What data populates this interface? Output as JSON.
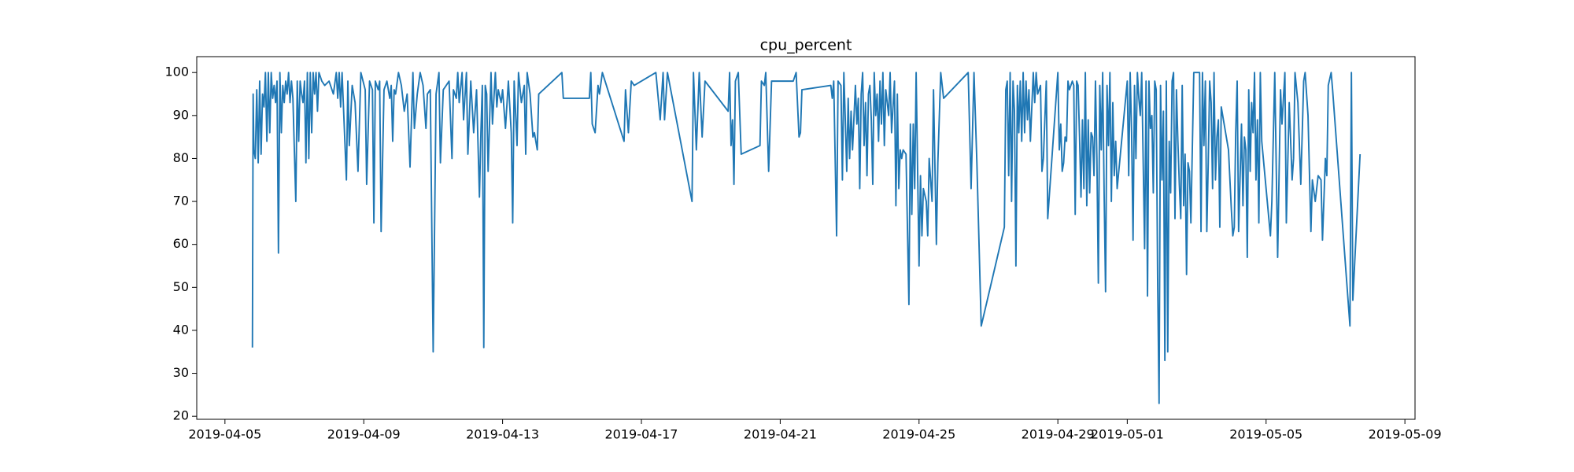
{
  "chart_data": {
    "type": "line",
    "title": "cpu_percent",
    "color": "#1f77b4",
    "xlim": [
      "2019-04-04T04:30",
      "2019-05-09T07:00"
    ],
    "xticks": [
      "2019-04-05",
      "2019-04-09",
      "2019-04-13",
      "2019-04-17",
      "2019-04-21",
      "2019-04-25",
      "2019-04-29",
      "2019-05-01",
      "2019-05-05",
      "2019-05-09"
    ],
    "ylim": [
      19.3,
      103.7
    ],
    "yticks": [
      20,
      30,
      40,
      50,
      60,
      70,
      80,
      90,
      100
    ],
    "x": [
      "2019-04-05T19:00",
      "2019-04-05T19:30",
      "2019-04-05T20:00",
      "2019-04-05T21:00",
      "2019-04-05T22:00",
      "2019-04-05T23:00",
      "2019-04-06T00:00",
      "2019-04-06T01:00",
      "2019-04-06T02:00",
      "2019-04-06T03:00",
      "2019-04-06T04:00",
      "2019-04-06T05:00",
      "2019-04-06T06:00",
      "2019-04-06T07:00",
      "2019-04-06T08:00",
      "2019-04-06T09:00",
      "2019-04-06T10:00",
      "2019-04-06T11:00",
      "2019-04-06T12:00",
      "2019-04-06T13:00",
      "2019-04-06T14:00",
      "2019-04-06T15:00",
      "2019-04-06T16:00",
      "2019-04-06T17:00",
      "2019-04-06T18:00",
      "2019-04-06T19:00",
      "2019-04-06T20:00",
      "2019-04-06T21:00",
      "2019-04-06T22:00",
      "2019-04-06T23:00",
      "2019-04-07T01:00",
      "2019-04-07T02:00",
      "2019-04-07T03:00",
      "2019-04-07T04:00",
      "2019-04-07T05:00",
      "2019-04-07T06:00",
      "2019-04-07T07:00",
      "2019-04-07T08:00",
      "2019-04-07T09:00",
      "2019-04-07T10:00",
      "2019-04-07T11:00",
      "2019-04-07T12:00",
      "2019-04-07T13:00",
      "2019-04-07T14:00",
      "2019-04-07T15:00",
      "2019-04-07T16:00",
      "2019-04-07T17:00",
      "2019-04-07T19:00",
      "2019-04-07T21:00",
      "2019-04-08T00:00",
      "2019-04-08T03:00",
      "2019-04-08T05:00",
      "2019-04-08T06:00",
      "2019-04-08T07:00",
      "2019-04-08T08:00",
      "2019-04-08T09:00",
      "2019-04-08T12:00",
      "2019-04-08T13:00",
      "2019-04-08T14:00",
      "2019-04-08T16:00",
      "2019-04-08T18:00",
      "2019-04-08T20:00",
      "2019-04-08T22:00",
      "2019-04-09T01:00",
      "2019-04-09T02:00",
      "2019-04-09T04:00",
      "2019-04-09T06:00",
      "2019-04-09T07:00",
      "2019-04-09T08:00",
      "2019-04-09T10:00",
      "2019-04-09T11:00",
      "2019-04-09T12:00",
      "2019-04-09T14:00",
      "2019-04-09T16:00",
      "2019-04-09T18:00",
      "2019-04-09T19:00",
      "2019-04-09T20:00",
      "2019-04-09T21:00",
      "2019-04-09T22:00",
      "2019-04-10T00:00",
      "2019-04-10T02:00",
      "2019-04-10T04:00",
      "2019-04-10T06:00",
      "2019-04-10T08:00",
      "2019-04-10T10:00",
      "2019-04-10T11:00",
      "2019-04-10T13:00",
      "2019-04-10T15:00",
      "2019-04-10T17:00",
      "2019-04-10T19:00",
      "2019-04-10T20:00",
      "2019-04-10T22:00",
      "2019-04-11T00:00",
      "2019-04-11T02:00",
      "2019-04-11T04:00",
      "2019-04-11T05:00",
      "2019-04-11T07:00",
      "2019-04-11T09:00",
      "2019-04-11T11:00",
      "2019-04-11T13:00",
      "2019-04-11T14:00",
      "2019-04-11T16:00",
      "2019-04-11T17:00",
      "2019-04-11T18:00",
      "2019-04-11T20:00",
      "2019-04-11T21:00",
      "2019-04-11T23:00",
      "2019-04-12T00:00",
      "2019-04-12T02:00",
      "2019-04-12T04:00",
      "2019-04-12T06:00",
      "2019-04-12T08:00",
      "2019-04-12T09:00",
      "2019-04-12T10:00",
      "2019-04-12T11:00",
      "2019-04-12T12:00",
      "2019-04-12T13:00",
      "2019-04-12T14:00",
      "2019-04-12T16:00",
      "2019-04-12T17:00",
      "2019-04-12T19:00",
      "2019-04-12T20:00",
      "2019-04-12T21:00",
      "2019-04-12T23:00",
      "2019-04-13T00:00",
      "2019-04-13T02:00",
      "2019-04-13T04:00",
      "2019-04-13T06:00",
      "2019-04-13T07:00",
      "2019-04-13T08:00",
      "2019-04-13T10:00",
      "2019-04-13T11:00",
      "2019-04-13T13:00",
      "2019-04-13T15:00",
      "2019-04-13T16:00",
      "2019-04-13T17:00",
      "2019-04-13T19:00",
      "2019-04-13T21:00",
      "2019-04-13T22:00",
      "2019-04-14T00:00",
      "2019-04-14T01:00",
      "2019-04-14T17:00",
      "2019-04-14T18:00",
      "2019-04-15T12:00",
      "2019-04-15T13:00",
      "2019-04-15T14:00",
      "2019-04-15T16:00",
      "2019-04-15T18:00",
      "2019-04-15T19:00",
      "2019-04-15T21:00",
      "2019-04-16T12:00",
      "2019-04-16T13:00",
      "2019-04-16T15:00",
      "2019-04-16T17:00",
      "2019-04-16T19:00",
      "2019-04-17T10:00",
      "2019-04-17T13:00",
      "2019-04-17T15:00",
      "2019-04-17T16:00",
      "2019-04-17T18:00",
      "2019-04-18T11:00",
      "2019-04-18T12:00",
      "2019-04-18T14:00",
      "2019-04-18T16:00",
      "2019-04-18T18:00",
      "2019-04-18T20:00",
      "2019-04-19T12:00",
      "2019-04-19T13:00",
      "2019-04-19T14:00",
      "2019-04-19T15:00",
      "2019-04-19T16:00",
      "2019-04-19T17:00",
      "2019-04-19T19:00",
      "2019-04-19T21:00",
      "2019-04-20T10:00",
      "2019-04-20T11:00",
      "2019-04-20T13:00",
      "2019-04-20T14:00",
      "2019-04-20T16:00",
      "2019-04-20T18:00",
      "2019-04-21T09:00",
      "2019-04-21T11:00",
      "2019-04-21T13:00",
      "2019-04-21T14:00",
      "2019-04-21T15:00",
      "2019-04-22T11:00",
      "2019-04-22T12:00",
      "2019-04-22T13:00",
      "2019-04-22T15:00",
      "2019-04-22T16:00",
      "2019-04-22T18:00",
      "2019-04-22T19:00",
      "2019-04-22T20:00",
      "2019-04-22T21:00",
      "2019-04-22T22:00",
      "2019-04-22T23:00",
      "2019-04-23T00:00",
      "2019-04-23T01:00",
      "2019-04-23T02:00",
      "2019-04-23T04:00",
      "2019-04-23T05:00",
      "2019-04-23T06:00",
      "2019-04-23T07:00",
      "2019-04-23T08:00",
      "2019-04-23T09:00",
      "2019-04-23T10:00",
      "2019-04-23T11:00",
      "2019-04-23T12:00",
      "2019-04-23T13:00",
      "2019-04-23T14:00",
      "2019-04-23T15:00",
      "2019-04-23T16:00",
      "2019-04-23T17:00",
      "2019-04-23T18:00",
      "2019-04-23T19:00",
      "2019-04-23T20:00",
      "2019-04-23T21:00",
      "2019-04-23T22:00",
      "2019-04-23T23:00",
      "2019-04-24T00:00",
      "2019-04-24T01:00",
      "2019-04-24T03:00",
      "2019-04-24T04:00",
      "2019-04-24T05:00",
      "2019-04-24T07:00",
      "2019-04-24T08:00",
      "2019-04-24T09:00",
      "2019-04-24T10:00",
      "2019-04-24T11:00",
      "2019-04-24T12:00",
      "2019-04-24T13:00",
      "2019-04-24T15:00",
      "2019-04-24T17:00",
      "2019-04-24T18:00",
      "2019-04-24T19:00",
      "2019-04-24T20:00",
      "2019-04-24T21:00",
      "2019-04-24T22:00",
      "2019-04-25T00:00",
      "2019-04-25T01:00",
      "2019-04-25T02:00",
      "2019-04-25T03:00",
      "2019-04-25T05:00",
      "2019-04-25T06:00",
      "2019-04-25T07:00",
      "2019-04-25T09:00",
      "2019-04-25T10:00",
      "2019-04-25T12:00",
      "2019-04-25T13:00",
      "2019-04-25T15:00",
      "2019-04-25T17:00",
      "2019-04-26T10:00",
      "2019-04-26T12:00",
      "2019-04-26T14:00",
      "2019-04-26T16:00",
      "2019-04-26T19:00",
      "2019-04-27T11:00",
      "2019-04-27T12:00",
      "2019-04-27T13:00",
      "2019-04-27T14:00",
      "2019-04-27T15:00",
      "2019-04-27T16:00",
      "2019-04-27T17:00",
      "2019-04-27T18:00",
      "2019-04-27T19:00",
      "2019-04-27T20:00",
      "2019-04-27T21:00",
      "2019-04-27T22:00",
      "2019-04-27T23:00",
      "2019-04-28T00:00",
      "2019-04-28T01:00",
      "2019-04-28T02:00",
      "2019-04-28T03:00",
      "2019-04-28T04:00",
      "2019-04-28T05:00",
      "2019-04-28T07:00",
      "2019-04-28T08:00",
      "2019-04-28T09:00",
      "2019-04-28T10:00",
      "2019-04-28T12:00",
      "2019-04-28T13:00",
      "2019-04-28T14:00",
      "2019-04-28T16:00",
      "2019-04-28T17:00",
      "2019-04-29T00:00",
      "2019-04-29T01:00",
      "2019-04-29T02:00",
      "2019-04-29T03:00",
      "2019-04-29T04:00",
      "2019-04-29T05:00",
      "2019-04-29T06:00",
      "2019-04-29T07:00",
      "2019-04-29T08:00",
      "2019-04-29T10:00",
      "2019-04-29T11:00",
      "2019-04-29T12:00",
      "2019-04-29T13:00",
      "2019-04-29T14:00",
      "2019-04-29T15:00",
      "2019-04-29T16:00",
      "2019-04-29T17:00",
      "2019-04-29T18:00",
      "2019-04-29T19:00",
      "2019-04-29T20:00",
      "2019-04-29T21:00",
      "2019-04-29T22:00",
      "2019-04-29T23:00",
      "2019-04-30T00:00",
      "2019-04-30T01:00",
      "2019-04-30T02:00",
      "2019-04-30T03:00",
      "2019-04-30T04:00",
      "2019-04-30T05:00",
      "2019-04-30T06:00",
      "2019-04-30T07:00",
      "2019-04-30T08:00",
      "2019-04-30T09:00",
      "2019-04-30T10:00",
      "2019-04-30T11:00",
      "2019-04-30T12:00",
      "2019-04-30T13:00",
      "2019-04-30T14:00",
      "2019-04-30T15:00",
      "2019-04-30T16:00",
      "2019-04-30T17:00",
      "2019-05-01T00:00",
      "2019-05-01T01:00",
      "2019-05-01T02:00",
      "2019-05-01T03:00",
      "2019-05-01T04:00",
      "2019-05-01T05:00",
      "2019-05-01T06:00",
      "2019-05-01T07:00",
      "2019-05-01T08:00",
      "2019-05-01T09:00",
      "2019-05-01T10:00",
      "2019-05-01T12:00",
      "2019-05-01T13:00",
      "2019-05-01T14:00",
      "2019-05-01T15:00",
      "2019-05-01T16:00",
      "2019-05-01T17:00",
      "2019-05-01T18:00",
      "2019-05-01T19:00",
      "2019-05-01T20:00",
      "2019-05-01T21:00",
      "2019-05-01T22:00",
      "2019-05-01T23:00",
      "2019-05-02T00:00",
      "2019-05-02T01:00",
      "2019-05-02T02:00",
      "2019-05-02T03:00",
      "2019-05-02T04:00",
      "2019-05-02T05:00",
      "2019-05-02T06:00",
      "2019-05-02T07:00",
      "2019-05-02T08:00",
      "2019-05-02T09:00",
      "2019-05-02T10:00",
      "2019-05-02T11:00",
      "2019-05-02T12:00",
      "2019-05-02T13:00",
      "2019-05-02T14:00",
      "2019-05-02T15:00",
      "2019-05-02T16:00",
      "2019-05-02T17:00",
      "2019-05-02T18:00",
      "2019-05-02T19:00",
      "2019-05-02T20:00",
      "2019-05-02T22:00",
      "2019-05-03T00:00",
      "2019-05-03T02:00",
      "2019-05-03T03:00",
      "2019-05-03T04:00",
      "2019-05-03T05:00",
      "2019-05-03T06:00",
      "2019-05-03T07:00",
      "2019-05-03T08:00",
      "2019-05-03T09:00",
      "2019-05-03T10:00",
      "2019-05-03T11:00",
      "2019-05-03T12:00",
      "2019-05-03T13:00",
      "2019-05-03T14:00",
      "2019-05-03T15:00",
      "2019-05-03T16:00",
      "2019-05-03T17:00",
      "2019-05-03T19:00",
      "2019-05-03T22:00",
      "2019-05-04T00:00",
      "2019-05-04T01:00",
      "2019-05-04T02:00",
      "2019-05-04T03:00",
      "2019-05-04T04:00",
      "2019-05-04T05:00",
      "2019-05-04T07:00",
      "2019-05-04T08:00",
      "2019-05-04T09:00",
      "2019-05-04T10:00",
      "2019-05-04T11:00",
      "2019-05-04T12:00",
      "2019-05-04T13:00",
      "2019-05-04T14:00",
      "2019-05-04T15:00",
      "2019-05-04T16:00",
      "2019-05-04T17:00",
      "2019-05-04T18:00",
      "2019-05-04T19:00",
      "2019-05-04T20:00",
      "2019-05-04T21:00",
      "2019-05-05T03:00",
      "2019-05-05T04:00",
      "2019-05-05T06:00",
      "2019-05-05T08:00",
      "2019-05-05T10:00",
      "2019-05-05T11:00",
      "2019-05-05T13:00",
      "2019-05-05T14:00",
      "2019-05-05T16:00",
      "2019-05-05T18:00",
      "2019-05-05T19:00",
      "2019-05-05T20:00",
      "2019-05-05T22:00",
      "2019-05-06T00:00",
      "2019-05-06T02:00",
      "2019-05-06T03:00",
      "2019-05-06T05:00",
      "2019-05-06T07:00",
      "2019-05-06T08:00",
      "2019-05-06T10:00",
      "2019-05-06T12:00",
      "2019-05-06T14:00",
      "2019-05-06T15:00",
      "2019-05-06T17:00",
      "2019-05-06T18:00",
      "2019-05-06T19:00",
      "2019-05-06T21:00",
      "2019-05-06T22:00",
      "2019-05-07T10:00",
      "2019-05-07T11:00",
      "2019-05-07T12:00",
      "2019-05-07T17:00"
    ],
    "values": [
      36,
      95,
      82,
      80,
      96,
      79,
      98,
      81,
      95,
      92,
      100,
      84,
      100,
      86,
      100,
      94,
      97,
      93,
      98,
      58,
      100,
      86,
      97,
      93,
      98,
      95,
      100,
      93,
      98,
      94,
      70,
      98,
      84,
      98,
      95,
      93,
      98,
      79,
      100,
      80,
      100,
      86,
      100,
      95,
      100,
      91,
      100,
      98,
      97,
      98,
      95,
      100,
      94,
      100,
      92,
      100,
      75,
      98,
      83,
      97,
      93,
      77,
      100,
      96,
      74,
      98,
      96,
      65,
      98,
      96,
      98,
      63,
      96,
      98,
      94,
      97,
      84,
      96,
      95,
      100,
      97,
      91,
      95,
      78,
      100,
      87,
      95,
      100,
      97,
      87,
      95,
      96,
      35,
      95,
      100,
      79,
      96,
      97,
      98,
      80,
      96,
      94,
      100,
      93,
      100,
      89,
      100,
      81,
      98,
      86,
      96,
      71,
      86,
      97,
      36,
      97,
      95,
      77,
      100,
      88,
      100,
      92,
      96,
      93,
      96,
      87,
      98,
      86,
      65,
      98,
      83,
      100,
      93,
      97,
      81,
      100,
      95,
      85,
      86,
      82,
      95,
      100,
      94,
      94,
      100,
      88,
      86,
      97,
      95,
      100,
      84,
      96,
      86,
      98,
      97,
      100,
      89,
      100,
      89,
      100,
      70,
      100,
      82,
      100,
      85,
      98,
      91,
      100,
      83,
      89,
      74,
      98,
      100,
      81,
      83,
      98,
      97,
      100,
      77,
      98,
      98,
      100,
      85,
      86,
      96,
      97,
      94,
      98,
      62,
      98,
      97,
      75,
      100,
      89,
      77,
      94,
      80,
      91,
      82,
      97,
      88,
      94,
      73,
      95,
      100,
      83,
      93,
      76,
      95,
      97,
      89,
      74,
      100,
      90,
      95,
      84,
      98,
      88,
      100,
      83,
      96,
      90,
      100,
      86,
      98,
      69,
      95,
      73,
      82,
      80,
      82,
      81,
      46,
      88,
      67,
      88,
      73,
      100,
      55,
      76,
      62,
      73,
      70,
      62,
      80,
      70,
      96,
      60,
      79,
      100,
      94,
      100,
      73,
      100,
      79,
      41,
      64,
      96,
      98,
      76,
      100,
      70,
      98,
      91,
      55,
      97,
      86,
      98,
      84,
      100,
      86,
      98,
      89,
      96,
      84,
      100,
      93,
      100,
      95,
      97,
      77,
      80,
      98,
      66,
      100,
      82,
      88,
      77,
      79,
      85,
      84,
      98,
      96,
      98,
      97,
      67,
      98,
      97,
      85,
      71,
      89,
      73,
      100,
      69,
      89,
      72,
      86,
      85,
      76,
      98,
      80,
      51,
      97,
      82,
      100,
      72,
      49,
      97,
      83,
      100,
      70,
      93,
      76,
      84,
      73,
      98,
      76,
      100,
      86,
      61,
      97,
      80,
      100,
      94,
      90,
      100,
      59,
      98,
      48,
      98,
      87,
      90,
      72,
      98,
      96,
      52,
      23,
      97,
      75,
      91,
      33,
      98,
      35,
      84,
      72,
      98,
      100,
      66,
      96,
      84,
      74,
      66,
      97,
      69,
      81,
      53,
      79,
      77,
      65,
      100,
      100,
      100,
      63,
      100,
      83,
      98,
      63,
      79,
      98,
      93,
      73,
      100,
      75,
      85,
      89,
      64,
      92,
      88,
      82,
      68,
      62,
      64,
      86,
      98,
      63,
      88,
      69,
      85,
      82,
      57,
      96,
      77,
      93,
      86,
      100,
      75,
      89,
      65,
      100,
      84,
      62,
      70,
      100,
      57,
      96,
      88,
      100,
      65,
      93,
      75,
      80,
      100,
      93,
      74,
      98,
      100,
      90,
      63,
      75,
      70,
      76,
      75,
      61,
      80,
      76,
      97,
      100,
      96,
      41,
      100,
      47,
      81
    ]
  }
}
